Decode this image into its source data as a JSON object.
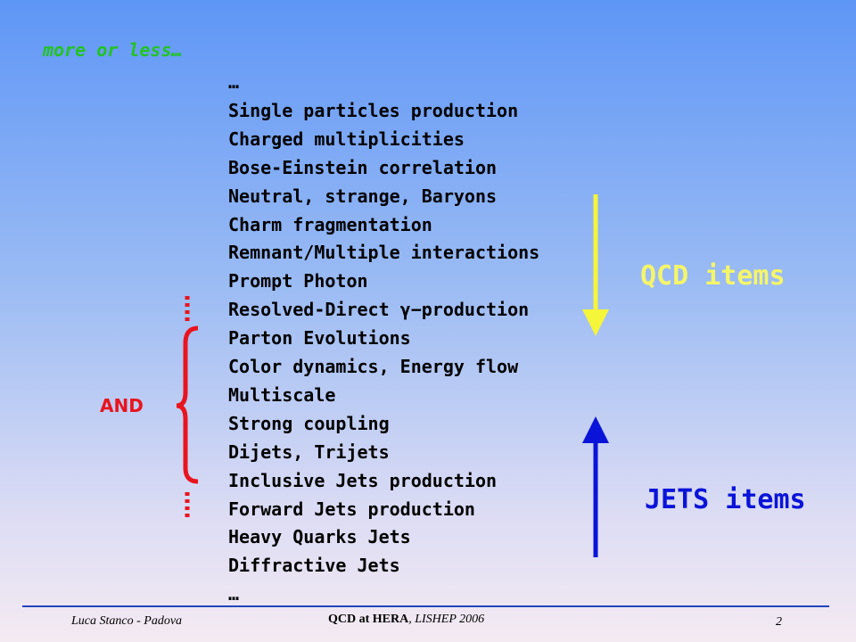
{
  "header": {
    "subtitle": "more or less…"
  },
  "items": [
    "…",
    "Single particles production",
    "Charged multiplicities",
    "Bose-Einstein correlation",
    "Neutral, strange, Baryons",
    "Charm fragmentation",
    "Remnant/Multiple interactions",
    "Prompt Photon",
    "Resolved-Direct γ−production",
    "Parton Evolutions",
    "Color dynamics, Energy flow",
    "Multiscale",
    "Strong coupling",
    "Dijets, Trijets",
    "Inclusive Jets production",
    "Forward Jets production",
    "Heavy Quarks Jets",
    "Diffractive Jets",
    "…"
  ],
  "labels": {
    "qcd": "QCD items",
    "jets": "JETS items",
    "and": "AND"
  },
  "footer": {
    "author": "Luca Stanco - Padova",
    "talk_bold": "QCD at HERA",
    "talk_rest": ", LISHEP 2006",
    "page": "2"
  }
}
